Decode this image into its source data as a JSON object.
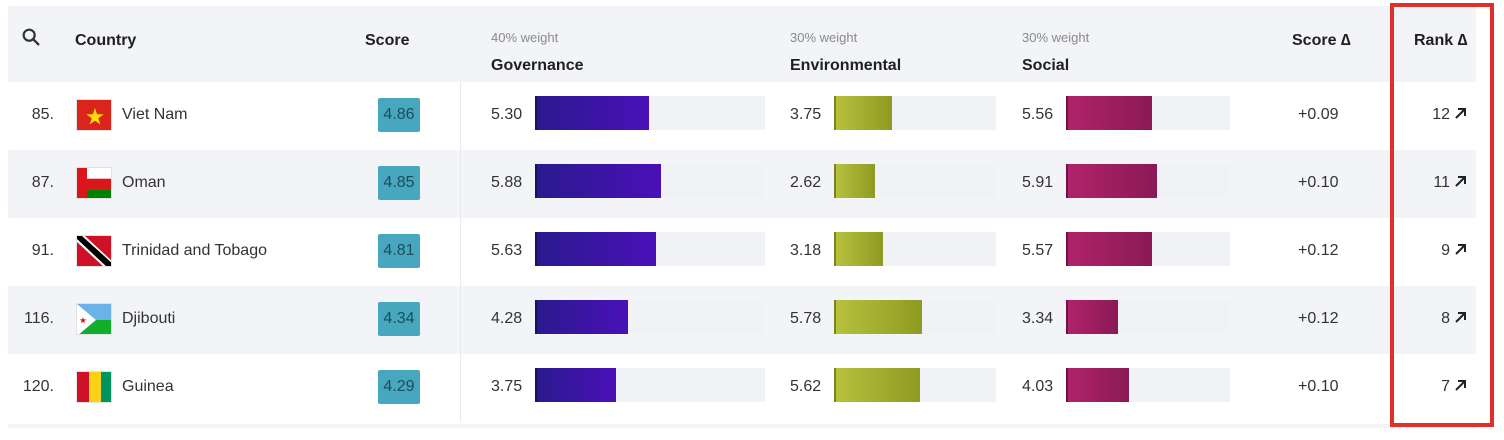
{
  "header": {
    "country": "Country",
    "score": "Score",
    "governance_weight": "40% weight",
    "governance": "Governance",
    "environmental_weight": "30% weight",
    "environmental": "Environmental",
    "social_weight": "30% weight",
    "social": "Social",
    "score_delta": "Score ∆",
    "rank_delta": "Rank ∆"
  },
  "rows": [
    {
      "rank": "85.",
      "country": "Viet Nam",
      "flag": "vietnam",
      "score": "4.86",
      "gov": "5.30",
      "gov_value": 5.3,
      "env": "3.75",
      "env_value": 3.75,
      "soc": "5.56",
      "soc_value": 5.56,
      "score_delta": "+0.09",
      "rank_delta": "12"
    },
    {
      "rank": "87.",
      "country": "Oman",
      "flag": "oman",
      "score": "4.85",
      "gov": "5.88",
      "gov_value": 5.88,
      "env": "2.62",
      "env_value": 2.62,
      "soc": "5.91",
      "soc_value": 5.91,
      "score_delta": "+0.10",
      "rank_delta": "11"
    },
    {
      "rank": "91.",
      "country": "Trinidad and Tobago",
      "flag": "trinidad",
      "score": "4.81",
      "gov": "5.63",
      "gov_value": 5.63,
      "env": "3.18",
      "env_value": 3.18,
      "soc": "5.57",
      "soc_value": 5.57,
      "score_delta": "+0.12",
      "rank_delta": "9"
    },
    {
      "rank": "116.",
      "country": "Djibouti",
      "flag": "djibouti",
      "score": "4.34",
      "gov": "4.28",
      "gov_value": 4.28,
      "env": "5.78",
      "env_value": 5.78,
      "soc": "3.34",
      "soc_value": 3.34,
      "score_delta": "+0.12",
      "rank_delta": "8"
    },
    {
      "rank": "120.",
      "country": "Guinea",
      "flag": "guinea",
      "score": "4.29",
      "gov": "3.75",
      "gov_value": 3.75,
      "env": "5.62",
      "env_value": 5.62,
      "soc": "4.03",
      "soc_value": 4.03,
      "score_delta": "+0.10",
      "rank_delta": "7"
    }
  ],
  "colors": {
    "score_badge": "#46a7bf",
    "governance": "#3b14a8",
    "environmental": "#a9b431",
    "social": "#9c1f60",
    "highlight": "#e0302a"
  },
  "icons": {
    "search": "search-icon",
    "rank_arrow": "arrow-up-right-icon"
  }
}
